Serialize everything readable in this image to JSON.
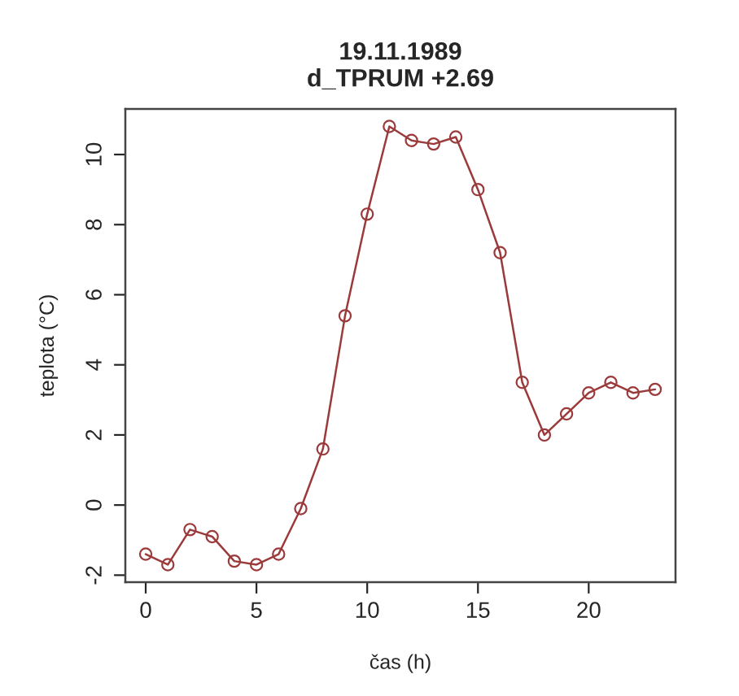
{
  "chart_data": {
    "type": "line",
    "title": "19.11.1989\nd_TPRUM +2.69",
    "xlabel": "čas (h)",
    "ylabel": "teplota (°C)",
    "x": [
      0,
      1,
      2,
      3,
      4,
      5,
      6,
      7,
      8,
      9,
      10,
      11,
      12,
      13,
      14,
      15,
      16,
      17,
      18,
      19,
      20,
      21,
      22,
      23
    ],
    "series": [
      {
        "color": "#9b3a3a",
        "values": [
          -1.4,
          -1.7,
          -0.7,
          -0.9,
          -1.6,
          -1.7,
          -1.4,
          -0.1,
          1.6,
          5.4,
          8.3,
          10.8,
          10.4,
          10.3,
          10.5,
          9.0,
          7.2,
          3.5,
          2.0,
          2.6,
          3.2,
          3.5,
          3.2,
          3.3
        ]
      }
    ],
    "xlim": [
      -0.92,
      23.92
    ],
    "ylim": [
      -2.2,
      11.3
    ],
    "xticks": [
      0,
      5,
      10,
      15,
      20
    ],
    "yticks": [
      -2,
      0,
      2,
      4,
      6,
      8,
      10
    ],
    "marker": "circle",
    "line_style": "solid",
    "grid": false,
    "legend": false
  }
}
